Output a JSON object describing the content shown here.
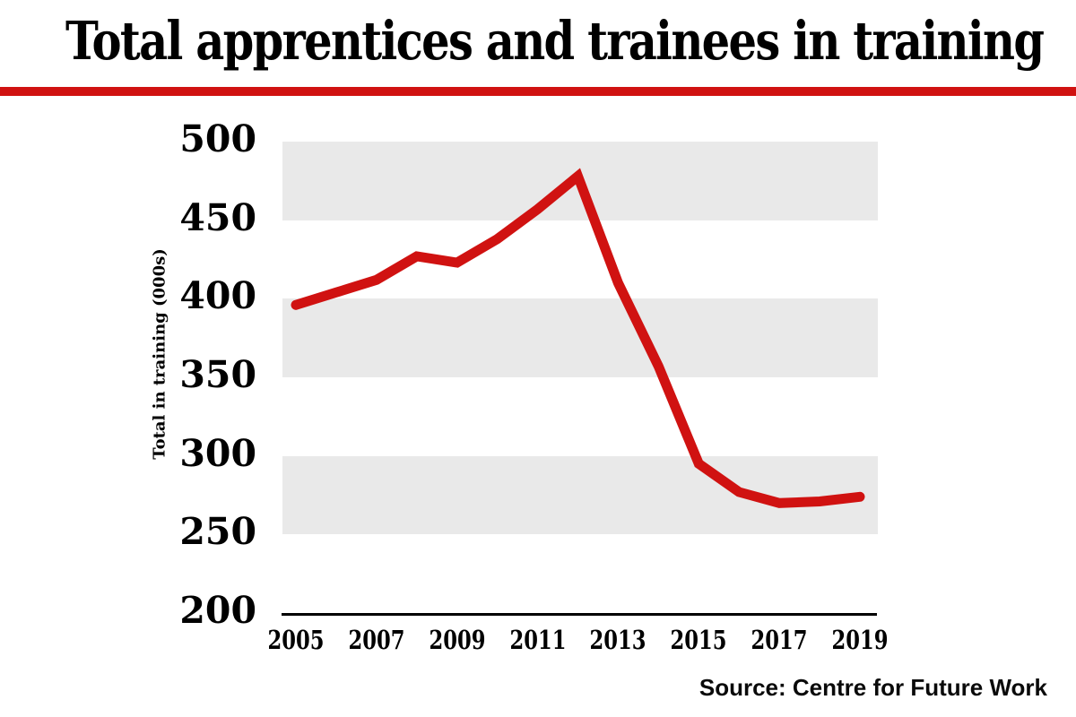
{
  "title": "Total apprentices and trainees in training",
  "source": "Source: Centre for Future Work",
  "colors": {
    "accent_red": "#d01211",
    "band_gray": "#e9e9e9",
    "axis_black": "#000000",
    "background": "#ffffff"
  },
  "chart_data": {
    "type": "line",
    "title": "Total apprentices and trainees in training",
    "x": [
      2005,
      2006,
      2007,
      2008,
      2009,
      2010,
      2011,
      2012,
      2013,
      2014,
      2015,
      2016,
      2017,
      2018,
      2019
    ],
    "values": [
      396,
      404,
      412,
      427,
      423,
      438,
      457,
      478,
      410,
      357,
      295,
      277,
      270,
      271,
      274
    ],
    "series_name": "Total apprentices and trainees in training",
    "xlabel": "",
    "ylabel": "Total in training (000s)",
    "ylim": [
      200,
      500
    ],
    "yticks": [
      500,
      450,
      400,
      350,
      300,
      250,
      200
    ],
    "xticks": [
      2005,
      2007,
      2009,
      2011,
      2013,
      2015,
      2017,
      2019
    ],
    "grid": "horizontal-bands",
    "band_between": [
      [
        450,
        500
      ],
      [
        350,
        400
      ],
      [
        250,
        300
      ]
    ],
    "legend": "none",
    "line_color": "#d01211",
    "line_width": 11
  }
}
